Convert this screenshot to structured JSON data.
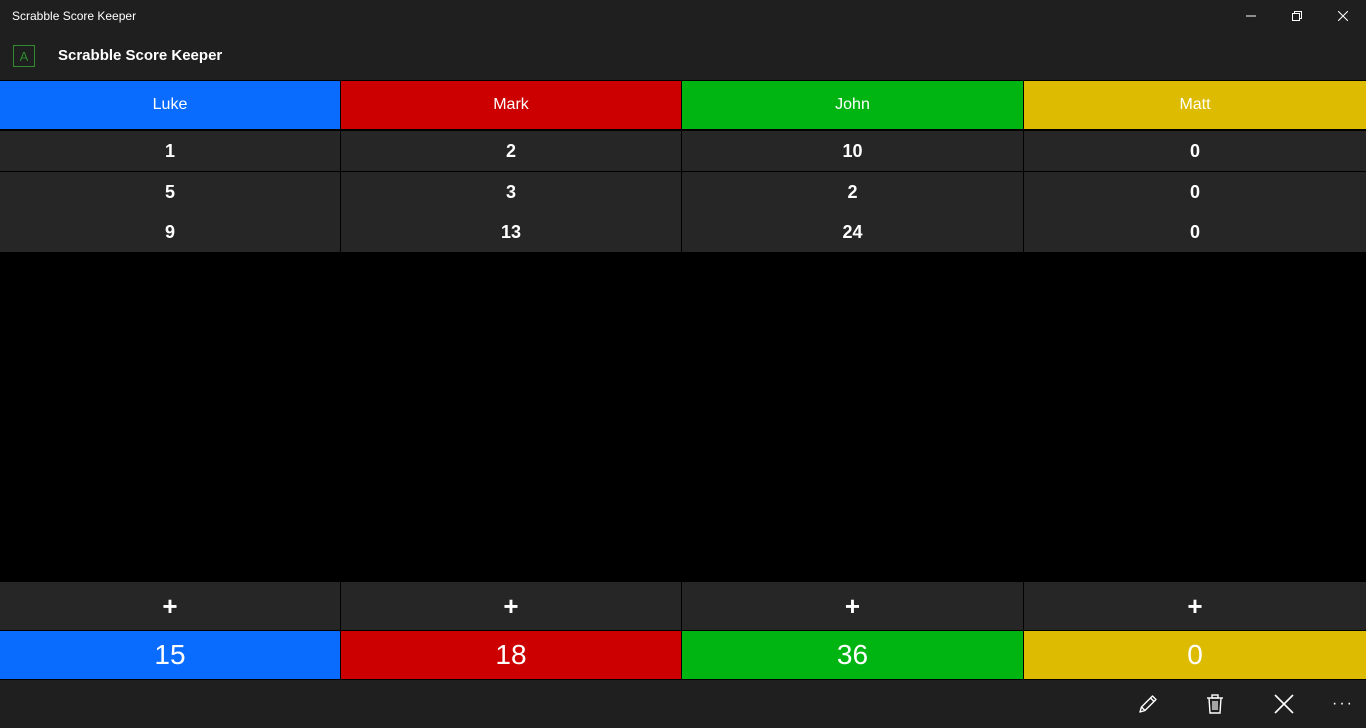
{
  "window": {
    "title": "Scrabble Score Keeper",
    "controls": [
      "minimize-icon",
      "restore-icon",
      "close-icon"
    ]
  },
  "app": {
    "logo_letter": "A",
    "title": "Scrabble Score Keeper"
  },
  "players": [
    {
      "name": "Luke",
      "color": "#0a6cff",
      "scores": [
        "1",
        "5",
        "9"
      ],
      "add_label": "+",
      "total": "15"
    },
    {
      "name": "Mark",
      "color": "#cc0000",
      "scores": [
        "2",
        "3",
        "13"
      ],
      "add_label": "+",
      "total": "18"
    },
    {
      "name": "John",
      "color": "#00b512",
      "scores": [
        "10",
        "2",
        "24"
      ],
      "add_label": "+",
      "total": "36"
    },
    {
      "name": "Matt",
      "color": "#dcbb00",
      "scores": [
        "0",
        "0",
        "0"
      ],
      "add_label": "+",
      "total": "0"
    }
  ],
  "commandbar": {
    "icons": [
      "edit-icon",
      "delete-icon",
      "close-icon"
    ],
    "more_label": "···"
  }
}
